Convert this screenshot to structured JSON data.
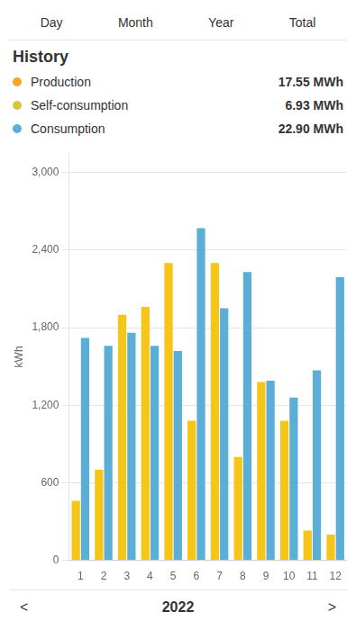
{
  "chart_data": {
    "type": "bar",
    "title": "History",
    "categories": [
      "1",
      "2",
      "3",
      "4",
      "5",
      "6",
      "7",
      "8",
      "9",
      "10",
      "11",
      "12"
    ],
    "series": [
      {
        "name": "Production",
        "color": "#f5c518",
        "values": [
          460,
          700,
          1900,
          1960,
          2300,
          1080,
          2300,
          800,
          1380,
          1080,
          230,
          200
        ]
      },
      {
        "name": "Consumption",
        "color": "#5bafd6",
        "values": [
          1720,
          1660,
          1760,
          1660,
          1620,
          2570,
          1950,
          2230,
          1390,
          1260,
          1470,
          2190
        ]
      }
    ],
    "ylabel": "kWh",
    "ylim": [
      0,
      3150
    ],
    "yticks": [
      0,
      600,
      {
        "value": 1200,
        "label": "1,200"
      },
      {
        "value": 1800,
        "label": "1,800"
      },
      {
        "value": 2400,
        "label": "2,400"
      },
      {
        "value": 3000,
        "label": "3,000"
      }
    ],
    "grid": true,
    "annotations": [
      [
        {
          "text": "Day"
        },
        {
          "text": "Month"
        },
        {
          "text": "Year"
        },
        {
          "text": "Total"
        }
      ],
      [
        {
          "text": "Production",
          "color": "#f5a623"
        },
        {
          "text": "17.55 MWh"
        }
      ],
      [
        {
          "text": "Self-consumption",
          "color": "#d4c934"
        },
        {
          "text": "6.93 MWh"
        }
      ],
      [
        {
          "text": "Consumption",
          "color": "#5bafd6"
        },
        {
          "text": "22.90 MWh"
        }
      ],
      [
        {
          "text": "<"
        },
        {
          "text": "2022"
        },
        {
          "text": ">"
        }
      ]
    ]
  }
}
